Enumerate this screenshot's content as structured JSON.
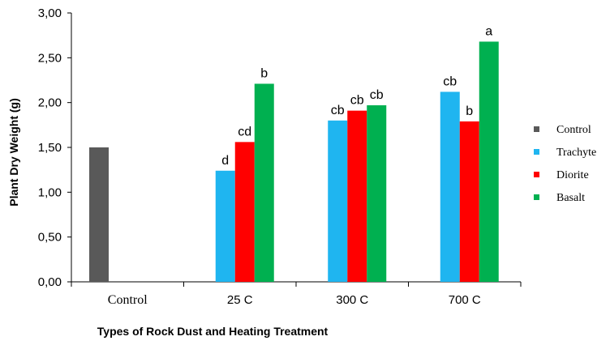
{
  "chart_data": {
    "type": "bar",
    "title": "",
    "xlabel": "Types of Rock Dust and Heating Treatment",
    "ylabel": "Plant Dry Weight (g)",
    "ylim": [
      0,
      3
    ],
    "yticks": [
      "0,00",
      "0,50",
      "1,00",
      "1,50",
      "2,00",
      "2,50",
      "3,00"
    ],
    "categories": [
      "Control",
      "25 C",
      "300 C",
      "700 C"
    ],
    "legend_position": "right",
    "grid": false,
    "series": [
      {
        "name": "Control",
        "color": "#595959",
        "values": [
          1.5,
          null,
          null,
          null
        ],
        "labels": [
          "",
          "",
          "",
          ""
        ]
      },
      {
        "name": "Trachyte",
        "color": "#1FB5F0",
        "values": [
          null,
          1.24,
          1.8,
          2.12
        ],
        "labels": [
          "",
          "d",
          "cb",
          "cb"
        ]
      },
      {
        "name": "Diorite",
        "color": "#FF0000",
        "values": [
          null,
          1.56,
          1.91,
          1.79
        ],
        "labels": [
          "",
          "cd",
          "cb",
          "b"
        ]
      },
      {
        "name": "Basalt",
        "color": "#00B050",
        "values": [
          null,
          2.21,
          1.97,
          2.68
        ],
        "labels": [
          "",
          "b",
          "cb",
          "a"
        ]
      }
    ]
  }
}
